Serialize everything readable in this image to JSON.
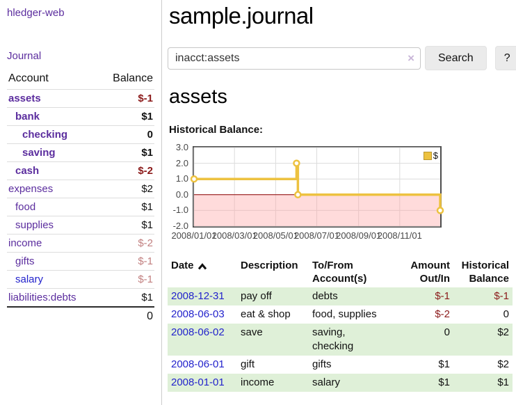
{
  "sidebar": {
    "app_title": "hledger-web",
    "journal_label": "Journal",
    "accounts_table": {
      "headers": {
        "account": "Account",
        "balance": "Balance"
      },
      "rows": [
        {
          "name": "assets",
          "indent": 1,
          "balance": "$-1",
          "bold": true,
          "balance_style": "negative"
        },
        {
          "name": "bank",
          "indent": 2,
          "balance": "$1",
          "bold": true,
          "balance_style": "normal"
        },
        {
          "name": "checking",
          "indent": 3,
          "balance": "0",
          "bold": true,
          "balance_style": "normal"
        },
        {
          "name": "saving",
          "indent": 3,
          "balance": "$1",
          "bold": true,
          "balance_style": "normal"
        },
        {
          "name": "cash",
          "indent": 2,
          "balance": "$-2",
          "bold": true,
          "balance_style": "negative"
        },
        {
          "name": "expenses",
          "indent": 1,
          "balance": "$2",
          "bold": false,
          "balance_style": "normal"
        },
        {
          "name": "food",
          "indent": 2,
          "balance": "$1",
          "bold": false,
          "balance_style": "normal"
        },
        {
          "name": "supplies",
          "indent": 2,
          "balance": "$1",
          "bold": false,
          "balance_style": "normal"
        },
        {
          "name": "income",
          "indent": 1,
          "balance": "$-2",
          "bold": false,
          "balance_style": "muted"
        },
        {
          "name": "gifts",
          "indent": 2,
          "balance": "$-1",
          "bold": false,
          "balance_style": "muted"
        },
        {
          "name": "salary",
          "indent": 2,
          "balance": "$-1",
          "bold": false,
          "balance_style": "muted",
          "link_color": "blue"
        },
        {
          "name": "liabilities:debts",
          "indent": 1,
          "balance": "$1",
          "bold": false,
          "balance_style": "normal"
        }
      ],
      "total": "0"
    }
  },
  "header": {
    "title": "sample.journal"
  },
  "search": {
    "query": "inacct:assets",
    "clear_icon": "×",
    "button_label": "Search",
    "help_label": "?"
  },
  "account_page": {
    "heading": "assets",
    "chart_label": "Historical Balance:"
  },
  "chart_data": {
    "type": "line",
    "step": true,
    "series": [
      {
        "name": "$",
        "color": "#edc240",
        "points": [
          {
            "x": "2008-01-01",
            "y": 1
          },
          {
            "x": "2008-06-01",
            "y": 2
          },
          {
            "x": "2008-06-03",
            "y": 0
          },
          {
            "x": "2008-12-31",
            "y": -1
          }
        ]
      }
    ],
    "xlim": [
      "2008-01-01",
      "2008-12-31"
    ],
    "ylim": [
      -2,
      3
    ],
    "x_ticks": [
      {
        "label": "2008/01/01",
        "date": "2008-01-01"
      },
      {
        "label": "2008/03/01",
        "date": "2008-03-01"
      },
      {
        "label": "2008/05/01",
        "date": "2008-05-01"
      },
      {
        "label": "2008/07/01",
        "date": "2008-07-01"
      },
      {
        "label": "2008/09/01",
        "date": "2008-09-01"
      },
      {
        "label": "2008/11/01",
        "date": "2008-11-01"
      }
    ],
    "y_ticks": [
      "3.0",
      "2.0",
      "1.0",
      "0.0",
      "-1.0",
      "-2.0"
    ],
    "grid": true,
    "legend_position": "top-right",
    "negative_region": true
  },
  "register": {
    "headers": {
      "date": "Date",
      "sort_icon": "chevron-up-icon",
      "description": "Description",
      "accounts": "To/From Account(s)",
      "amount": "Amount Out/In",
      "balance": "Historical Balance"
    },
    "rows": [
      {
        "date": "2008-12-31",
        "description": "pay off",
        "accounts": "debts",
        "amount": "$-1",
        "amount_style": "negative",
        "balance": "$-1",
        "balance_style": "negative"
      },
      {
        "date": "2008-06-03",
        "description": "eat & shop",
        "accounts": "food, supplies",
        "amount": "$-2",
        "amount_style": "negative",
        "balance": "0",
        "balance_style": "normal"
      },
      {
        "date": "2008-06-02",
        "description": "save",
        "accounts": "saving, checking",
        "amount": "0",
        "amount_style": "normal",
        "balance": "$2",
        "balance_style": "normal"
      },
      {
        "date": "2008-06-01",
        "description": "gift",
        "accounts": "gifts",
        "amount": "$1",
        "amount_style": "normal",
        "balance": "$2",
        "balance_style": "normal"
      },
      {
        "date": "2008-01-01",
        "description": "income",
        "accounts": "salary",
        "amount": "$1",
        "amount_style": "normal",
        "balance": "$1",
        "balance_style": "normal"
      }
    ]
  },
  "colors": {
    "link_purple": "#5b2d9e",
    "link_blue": "#2323cc",
    "negative_red": "#8b1a1a",
    "muted_negative_red": "#c28080",
    "row_stripe_green": "#dff0d8",
    "series_gold": "#edc240",
    "negative_region_fill": "rgba(255,160,160,0.38)",
    "zero_line_red": "#8b0000",
    "gridline_gray": "#dcdcdc"
  }
}
